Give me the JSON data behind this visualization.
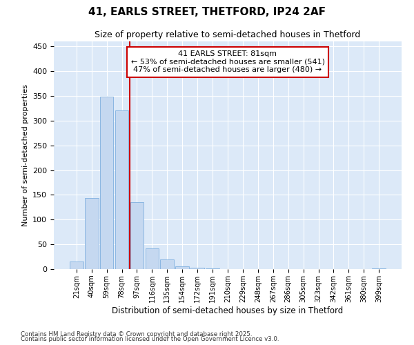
{
  "title1": "41, EARLS STREET, THETFORD, IP24 2AF",
  "title2": "Size of property relative to semi-detached houses in Thetford",
  "xlabel": "Distribution of semi-detached houses by size in Thetford",
  "ylabel": "Number of semi-detached properties",
  "categories": [
    "21sqm",
    "40sqm",
    "59sqm",
    "78sqm",
    "97sqm",
    "116sqm",
    "135sqm",
    "154sqm",
    "172sqm",
    "191sqm",
    "210sqm",
    "229sqm",
    "248sqm",
    "267sqm",
    "286sqm",
    "305sqm",
    "323sqm",
    "342sqm",
    "361sqm",
    "380sqm",
    "399sqm"
  ],
  "values": [
    15,
    143,
    348,
    320,
    135,
    42,
    19,
    5,
    3,
    1,
    0,
    0,
    0,
    0,
    0,
    0,
    0,
    0,
    0,
    0,
    1
  ],
  "bar_color": "#c5d8f0",
  "bar_edge_color": "#7fb0df",
  "vline_x_index": 3.5,
  "vline_color": "#cc0000",
  "annotation_text": "41 EARLS STREET: 81sqm\n← 53% of semi-detached houses are smaller (541)\n47% of semi-detached houses are larger (480) →",
  "annotation_box_facecolor": "#ffffff",
  "annotation_box_edgecolor": "#cc0000",
  "ylim": [
    0,
    460
  ],
  "yticks": [
    0,
    50,
    100,
    150,
    200,
    250,
    300,
    350,
    400,
    450
  ],
  "footer1": "Contains HM Land Registry data © Crown copyright and database right 2025.",
  "footer2": "Contains public sector information licensed under the Open Government Licence v3.0.",
  "fig_bg_color": "#ffffff",
  "plot_bg_color": "#dce9f8",
  "grid_color": "#ffffff"
}
